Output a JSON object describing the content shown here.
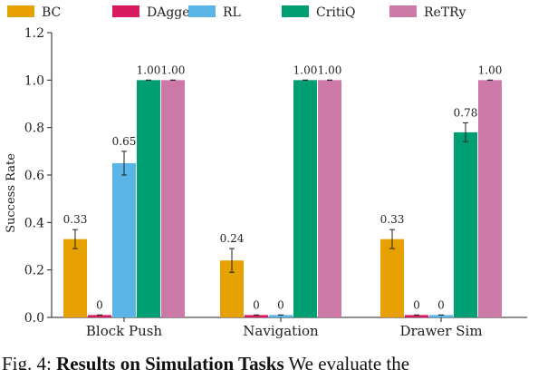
{
  "chart_data": {
    "type": "bar",
    "categories": [
      "Block Push",
      "Navigation",
      "Drawer Sim"
    ],
    "series": [
      {
        "name": "BC",
        "color": "#E6A100",
        "values": [
          0.33,
          0.24,
          0.33
        ],
        "errors": [
          0.04,
          0.05,
          0.04
        ],
        "labels": [
          "0.33",
          "0.24",
          "0.33"
        ]
      },
      {
        "name": "DAgger",
        "color": "#D81B60",
        "values": [
          0.01,
          0.01,
          0.01
        ],
        "errors": [
          0.0,
          0.0,
          0.0
        ],
        "labels": [
          "0",
          "0",
          "0"
        ]
      },
      {
        "name": "RL",
        "color": "#5AB4E5",
        "values": [
          0.65,
          0.01,
          0.01
        ],
        "errors": [
          0.05,
          0.0,
          0.0
        ],
        "labels": [
          "0.65",
          "0",
          "0"
        ]
      },
      {
        "name": "CritiQ",
        "color": "#009E73",
        "values": [
          1.0,
          1.0,
          0.78
        ],
        "errors": [
          0.0,
          0.0,
          0.04
        ],
        "labels": [
          "1.00",
          "1.00",
          "0.78"
        ]
      },
      {
        "name": "ReTRy",
        "color": "#CC79A7",
        "values": [
          1.0,
          1.0,
          1.0
        ],
        "errors": [
          0.0,
          0.0,
          0.0
        ],
        "labels": [
          "1.00",
          "1.00",
          "1.00"
        ]
      }
    ],
    "ylabel": "Success Rate",
    "xlabel": "",
    "ylim": [
      0,
      1.2
    ],
    "yticks": [
      "0.0",
      "0.2",
      "0.4",
      "0.6",
      "0.8",
      "1.0",
      "1.2"
    ],
    "grid": false,
    "legend_position": "top"
  },
  "caption": {
    "prefix": "Fig. 4: ",
    "bold": "Results on Simulation Tasks",
    "rest": " We evaluate the"
  }
}
